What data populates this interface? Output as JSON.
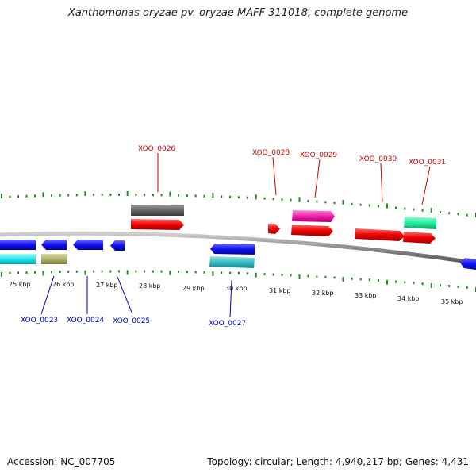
{
  "title": "Xanthomonas oryzae pv. oryzae MAFF 311018, complete genome",
  "footer": {
    "accession": "Accession: NC_007705",
    "summary": "Topology: circular; Length: 4,940,217 bp; Genes: 4,431"
  },
  "colors": {
    "forward_label": "#cc0000",
    "reverse_label": "#0000bb",
    "tick": "#228b22",
    "backbone": "#888888"
  },
  "scale": {
    "unit": "kbp",
    "ticks": [
      "25 kbp",
      "26 kbp",
      "27 kbp",
      "28 kbp",
      "29 kbp",
      "30 kbp",
      "31 kbp",
      "32 kbp",
      "33 kbp",
      "34 kbp",
      "35 kbp"
    ]
  },
  "genes_forward": [
    {
      "label": "XOO_0026"
    },
    {
      "label": "XOO_0028"
    },
    {
      "label": "XOO_0029"
    },
    {
      "label": "XOO_0030"
    },
    {
      "label": "XOO_0031"
    }
  ],
  "genes_reverse": [
    {
      "label": "XOO_0023"
    },
    {
      "label": "XOO_0024"
    },
    {
      "label": "XOO_0025"
    },
    {
      "label": "XOO_0027"
    }
  ]
}
